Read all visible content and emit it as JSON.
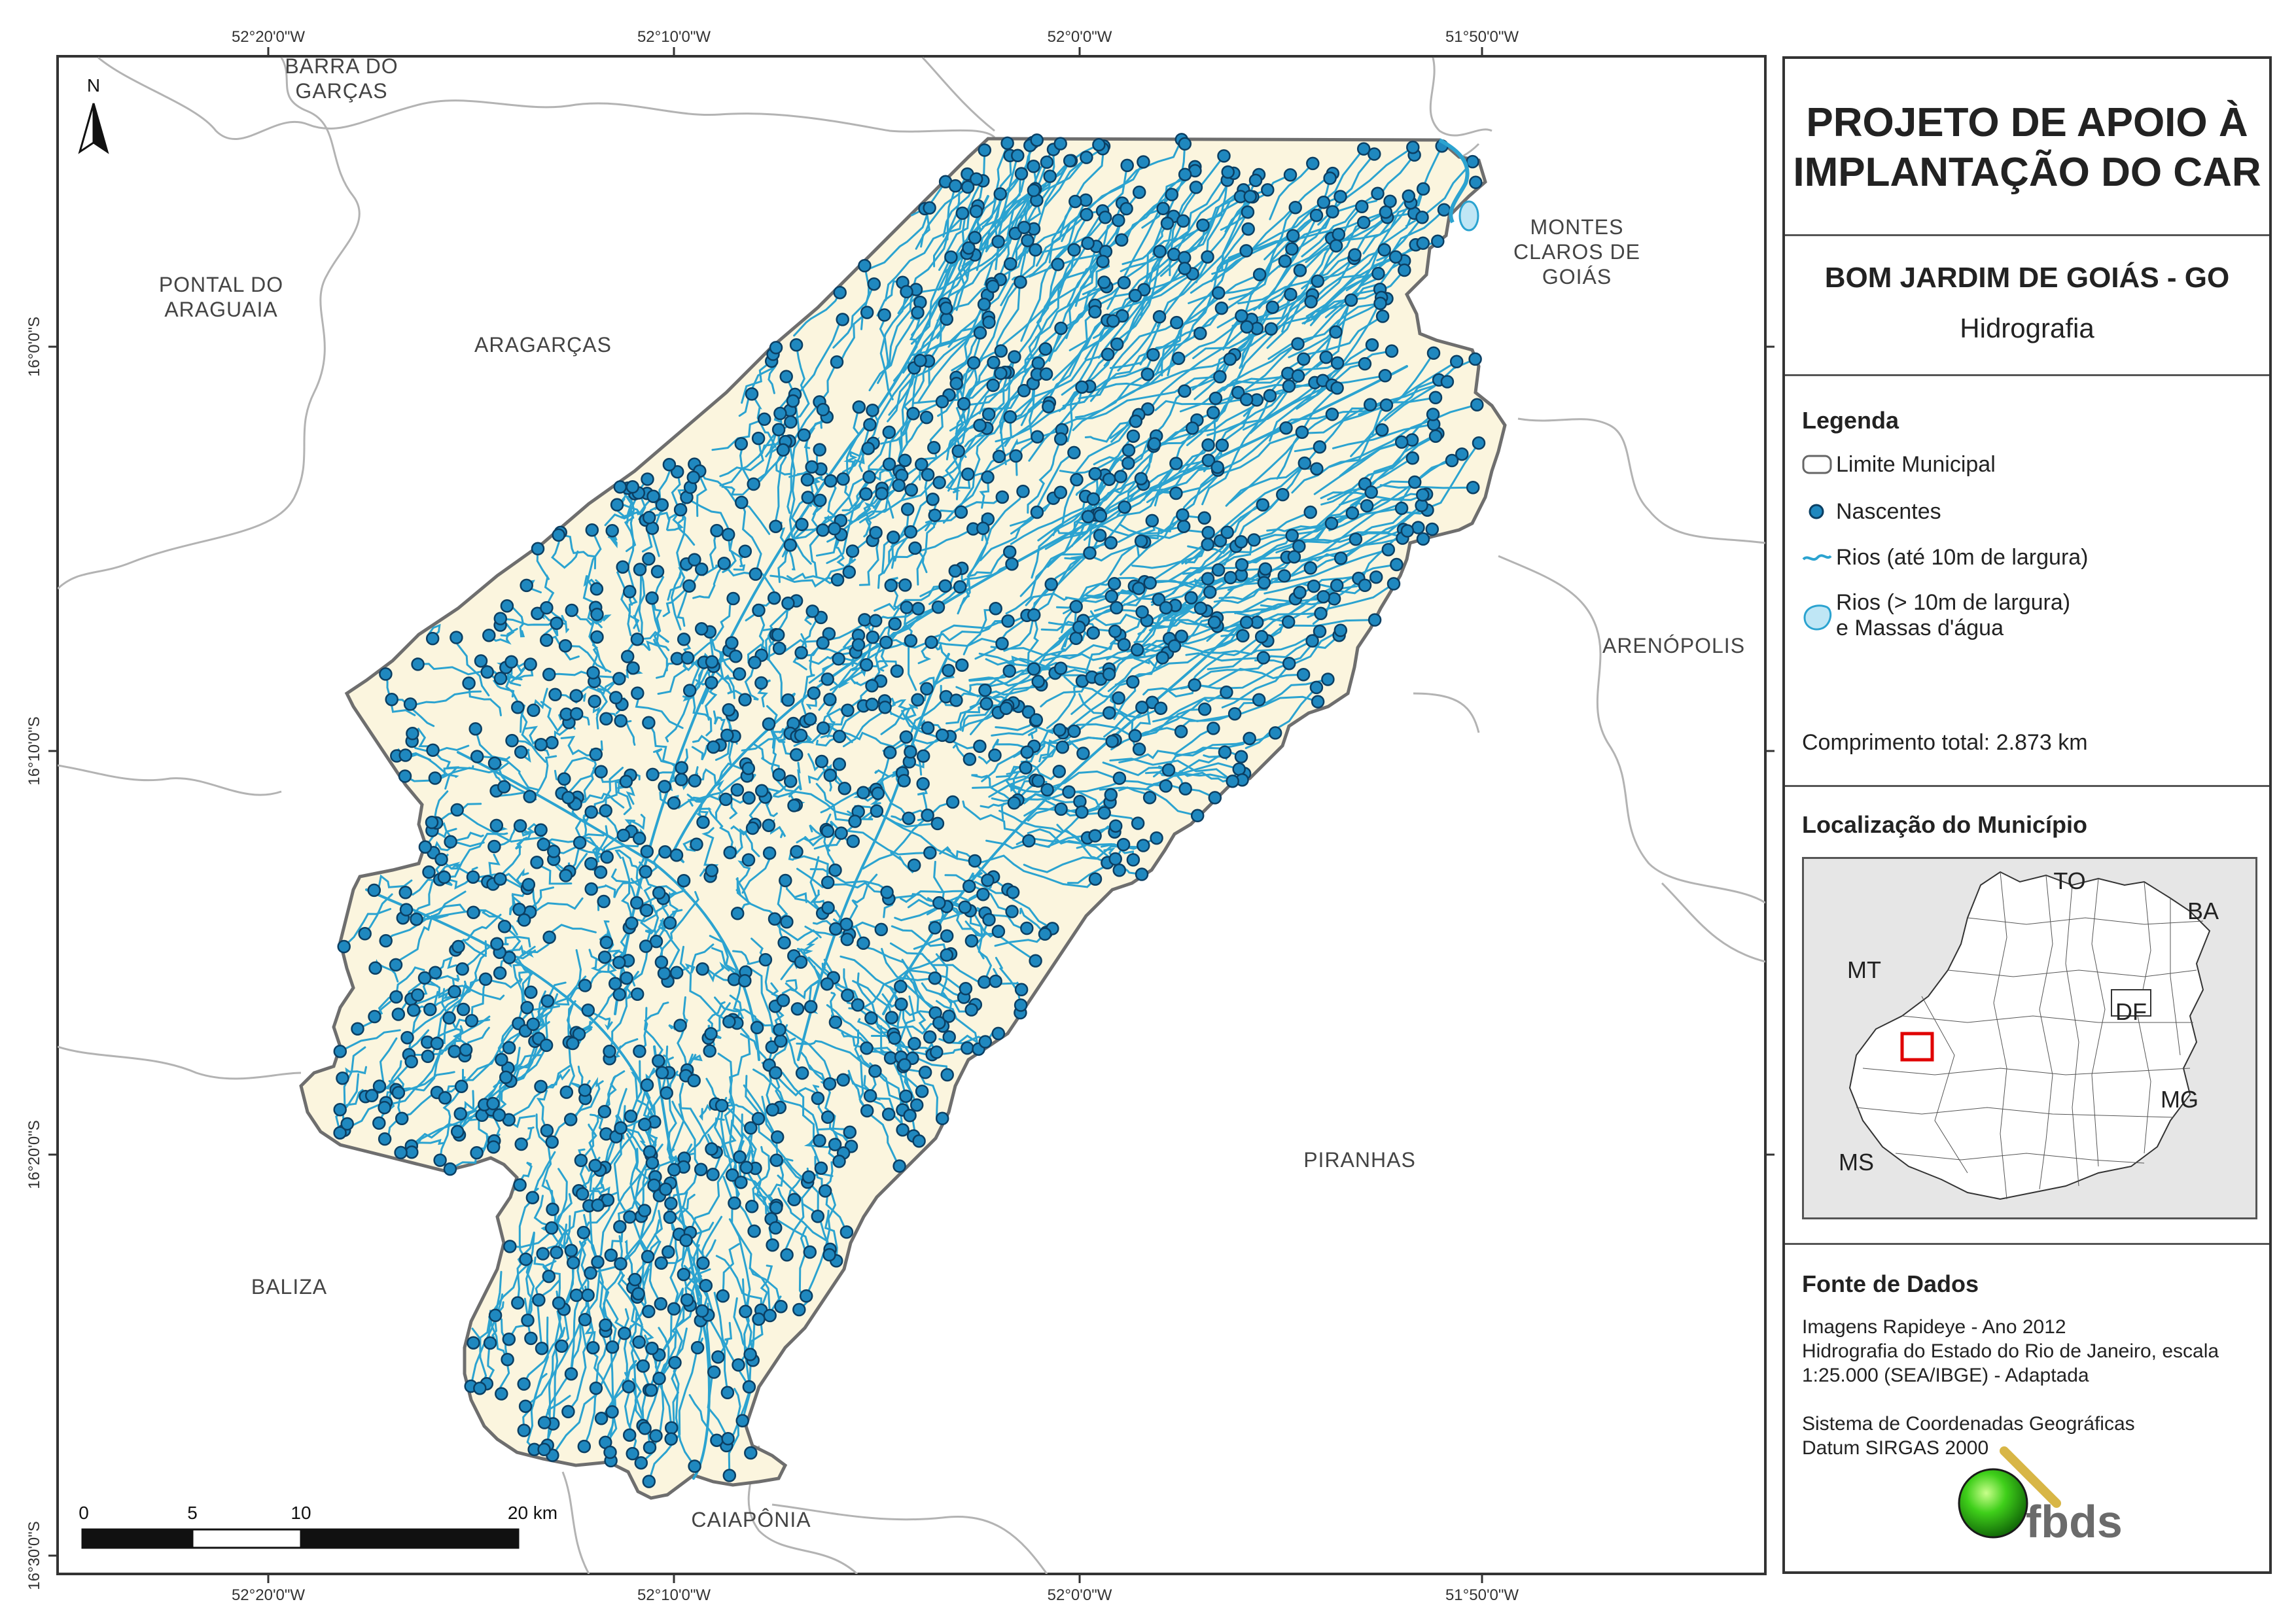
{
  "panel": {
    "title_line1": "PROJETO DE APOIO À",
    "title_line2": "IMPLANTAÇÃO DO CAR",
    "municipality": "BOM JARDIM DE GOIÁS - GO",
    "theme": "Hidrografia",
    "legend": {
      "heading": "Legenda",
      "items": [
        {
          "label": "Limite Municipal",
          "symbol": "outline"
        },
        {
          "label": "Nascentes",
          "symbol": "point"
        },
        {
          "label": "Rios (até 10m de largura)",
          "symbol": "line"
        },
        {
          "label_line1": "Rios (> 10m de largura)",
          "label_line2": "e Massas d'água",
          "symbol": "polygon"
        }
      ],
      "total_length": "Comprimento total:  2.873 km"
    },
    "location": {
      "heading": "Localização do Município",
      "labels": [
        "TO",
        "BA",
        "MT",
        "DF",
        "MG",
        "MS"
      ]
    },
    "sources": {
      "heading": "Fonte de Dados",
      "lines": [
        "Imagens Rapideye - Ano 2012",
        "Hidrografia do Estado do Rio de Janeiro, escala",
        "1:25.000 (SEA/IBGE) - Adaptada",
        "",
        "Sistema de Coordenadas Geográficas",
        "Datum SIRGAS 2000"
      ]
    },
    "logo_text": "fbds"
  },
  "map": {
    "north_label": "N",
    "top_coords": [
      "52°20'0\"W",
      "52°10'0\"W",
      "52°0'0\"W",
      "51°50'0\"W"
    ],
    "bottom_coords": [
      "52°20'0\"W",
      "52°10'0\"W",
      "52°0'0\"W",
      "51°50'0\"W"
    ],
    "left_coords": [
      "16°0'0\"S",
      "16°10'0\"S",
      "16°20'0\"S",
      "16°30'0\"S"
    ],
    "neighbors": {
      "barra_do_garcas_1": "BARRA DO",
      "barra_do_garcas_2": "GARÇAS",
      "pontal_1": "PONTAL DO",
      "pontal_2": "ARAGUAIA",
      "aragarcas": "ARAGARÇAS",
      "montes_1": "MONTES",
      "montes_2": "CLAROS DE",
      "montes_3": "GOIÁS",
      "arenopolis": "ARENÓPOLIS",
      "piranhas": "PIRANHAS",
      "baliza": "BALIZA",
      "caiaponia": "CAIAPÔNIA"
    },
    "scale": {
      "ticks": [
        "0",
        "5",
        "10",
        "20 km"
      ]
    },
    "nascentes_count_drawn": 1400,
    "colors": {
      "municipality_fill": "#fbf5de",
      "river": "#2ba3d0",
      "spring_fill": "#1f88bf",
      "spring_stroke": "#0b3f63",
      "boundary": "#6e6e6e",
      "neighbor_line": "#b3b3b3"
    }
  }
}
